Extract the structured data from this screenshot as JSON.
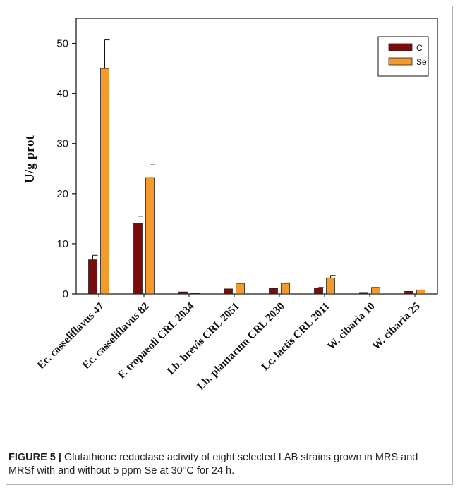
{
  "chart_data": {
    "type": "bar",
    "ylabel": "U/g prot",
    "xlabel": "",
    "ylim": [
      0,
      55
    ],
    "yticks": [
      0,
      10,
      20,
      30,
      40,
      50
    ],
    "grid": false,
    "legend_position": "top-right",
    "categories": [
      "Ec. casseliflavus 47",
      "Ec. casseliflavus 82",
      "F. tropaeoli CRL 2034",
      "Lb. brevis CRL 2051",
      "Lb. plantarum CRL 2030",
      "Lc. lactis CRL 2011",
      "W. cibaria 10",
      "W. cibaria 25"
    ],
    "series": [
      {
        "name": "C",
        "color": "#7a0c0c",
        "values": [
          6.8,
          14.1,
          0.4,
          1.0,
          1.1,
          1.2,
          0.3,
          0.5
        ],
        "errors": [
          0.9,
          1.4,
          0,
          0,
          0.1,
          0.1,
          0,
          0
        ]
      },
      {
        "name": "Se",
        "color": "#f39a2a",
        "values": [
          45.0,
          23.2,
          0.1,
          2.1,
          2.1,
          3.2,
          1.3,
          0.8
        ],
        "errors": [
          5.7,
          2.7,
          0,
          0,
          0.1,
          0.5,
          0,
          0
        ]
      }
    ]
  },
  "caption": {
    "label": "FIGURE 5 |",
    "text": " Glutathione reductase activity of eight selected LAB strains grown in MRS and MRSf with and without 5 ppm Se at 30°C for 24 h."
  }
}
